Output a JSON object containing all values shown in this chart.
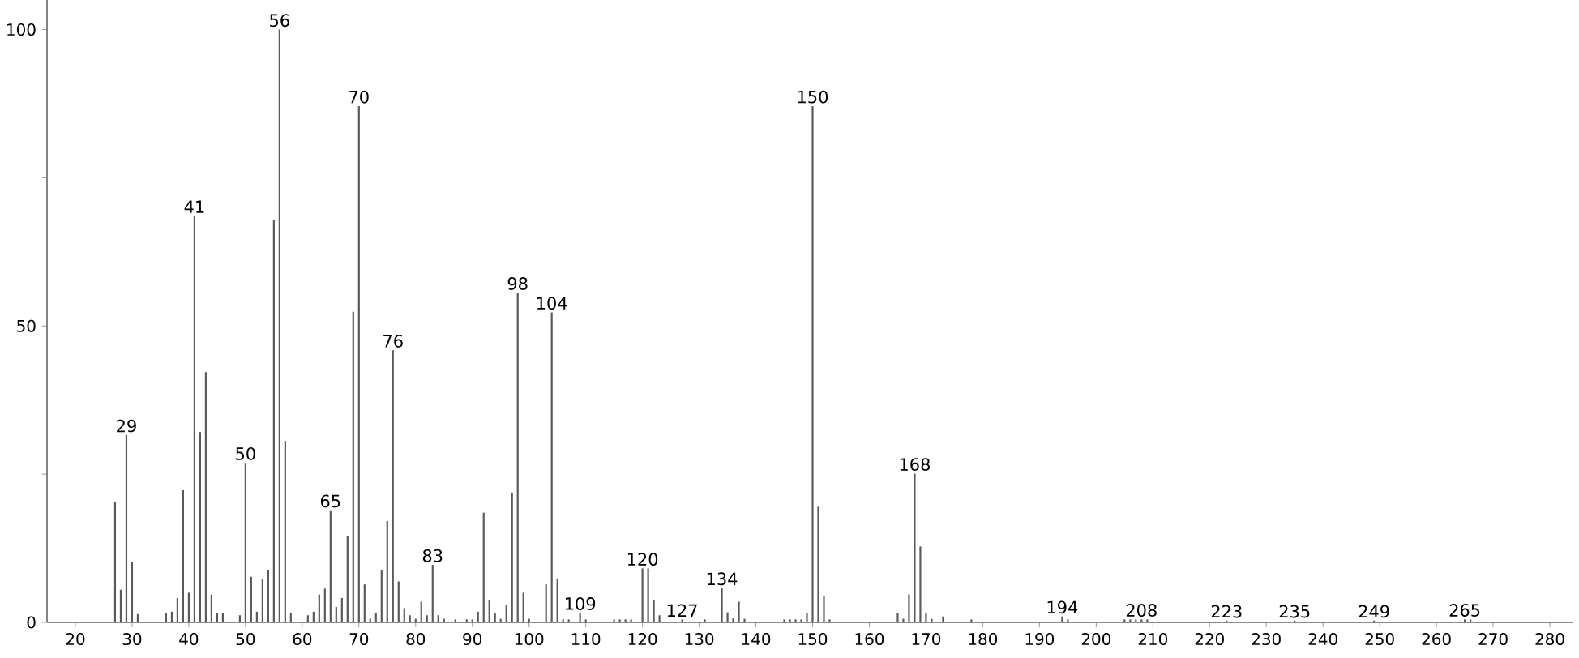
{
  "chart_data": {
    "type": "bar",
    "color": "#5a5a5a",
    "x": [
      27,
      28,
      29,
      30,
      31,
      36,
      37,
      38,
      39,
      40,
      41,
      42,
      43,
      44,
      45,
      46,
      49,
      50,
      51,
      52,
      53,
      54,
      55,
      56,
      57,
      58,
      61,
      62,
      63,
      64,
      65,
      66,
      67,
      68,
      69,
      70,
      71,
      72,
      73,
      74,
      75,
      76,
      77,
      78,
      79,
      80,
      81,
      82,
      83,
      84,
      85,
      87,
      89,
      90,
      91,
      92,
      93,
      94,
      95,
      96,
      97,
      98,
      99,
      100,
      103,
      104,
      105,
      106,
      107,
      109,
      110,
      115,
      116,
      117,
      118,
      120,
      121,
      122,
      123,
      127,
      131,
      134,
      135,
      136,
      137,
      138,
      145,
      146,
      147,
      148,
      149,
      150,
      151,
      152,
      153,
      165,
      166,
      167,
      168,
      169,
      170,
      171,
      173,
      178,
      194,
      195,
      205,
      206,
      207,
      208,
      209,
      223,
      235,
      249,
      265,
      266
    ],
    "values": [
      20.3,
      5.5,
      31.6,
      10.2,
      1.4,
      1.5,
      1.8,
      4.1,
      22.3,
      5.0,
      68.6,
      32.1,
      42.2,
      4.7,
      1.6,
      1.5,
      1.2,
      26.9,
      7.7,
      1.8,
      7.3,
      8.8,
      67.9,
      100,
      30.6,
      1.5,
      1.2,
      1.8,
      4.7,
      5.7,
      18.9,
      2.6,
      4.1,
      14.6,
      52.4,
      87.1,
      6.4,
      0.6,
      1.6,
      8.8,
      17.1,
      45.9,
      6.9,
      2.4,
      1.2,
      0.6,
      3.5,
      1.2,
      9.7,
      1.2,
      0.6,
      0.5,
      0.5,
      0.5,
      1.8,
      18.5,
      3.7,
      1.5,
      0.6,
      3.0,
      21.9,
      55.6,
      5.0,
      0.6,
      6.4,
      52.3,
      7.4,
      0.5,
      0.5,
      1.6,
      0.5,
      0.5,
      0.5,
      0.5,
      0.5,
      9.1,
      9.1,
      3.7,
      1.2,
      0.5,
      0.5,
      5.8,
      1.7,
      0.7,
      3.5,
      0.6,
      0.5,
      0.5,
      0.5,
      0.5,
      1.6,
      87.1,
      19.5,
      4.5,
      0.5,
      1.6,
      0.6,
      4.7,
      25.1,
      12.8,
      1.6,
      0.6,
      1.0,
      0.5,
      1.0,
      0.5,
      0.5,
      0.5,
      0.5,
      0.5,
      0.5,
      0.3,
      0.3,
      0.3,
      0.5,
      0.5
    ],
    "xlim": [
      15,
      284
    ],
    "ylim": [
      0,
      105
    ],
    "xticks": [
      20,
      30,
      40,
      50,
      60,
      70,
      80,
      90,
      100,
      110,
      120,
      130,
      140,
      150,
      160,
      170,
      180,
      190,
      200,
      210,
      220,
      230,
      240,
      250,
      260,
      270,
      280
    ],
    "yticks": [
      0,
      {
        "value": 25,
        "label": null
      },
      50,
      {
        "value": 75,
        "label": null
      },
      100
    ],
    "grid": false,
    "annotations": [
      {
        "text": "29",
        "x": 29,
        "y": 31.6
      },
      {
        "text": "41",
        "x": 41,
        "y": 68.6
      },
      {
        "text": "50",
        "x": 50,
        "y": 26.9
      },
      {
        "text": "56",
        "x": 56,
        "y": 100
      },
      {
        "text": "65",
        "x": 65,
        "y": 18.9
      },
      {
        "text": "70",
        "x": 70,
        "y": 87.1
      },
      {
        "text": "76",
        "x": 76,
        "y": 45.9
      },
      {
        "text": "83",
        "x": 83,
        "y": 9.7
      },
      {
        "text": "98",
        "x": 98,
        "y": 55.6
      },
      {
        "text": "104",
        "x": 104,
        "y": 52.3
      },
      {
        "text": "109",
        "x": 109,
        "y": 1.6
      },
      {
        "text": "120",
        "x": 120,
        "y": 9.1
      },
      {
        "text": "127",
        "x": 127,
        "y": 0.5
      },
      {
        "text": "134",
        "x": 134,
        "y": 5.8
      },
      {
        "text": "150",
        "x": 150,
        "y": 87.1
      },
      {
        "text": "168",
        "x": 168,
        "y": 25.1
      },
      {
        "text": "194",
        "x": 194,
        "y": 1.0
      },
      {
        "text": "208",
        "x": 208,
        "y": 0.5
      },
      {
        "text": "223",
        "x": 223,
        "y": 0.3
      },
      {
        "text": "235",
        "x": 235,
        "y": 0.3
      },
      {
        "text": "249",
        "x": 249,
        "y": 0.3
      },
      {
        "text": "265",
        "x": 265,
        "y": 0.5
      }
    ]
  }
}
